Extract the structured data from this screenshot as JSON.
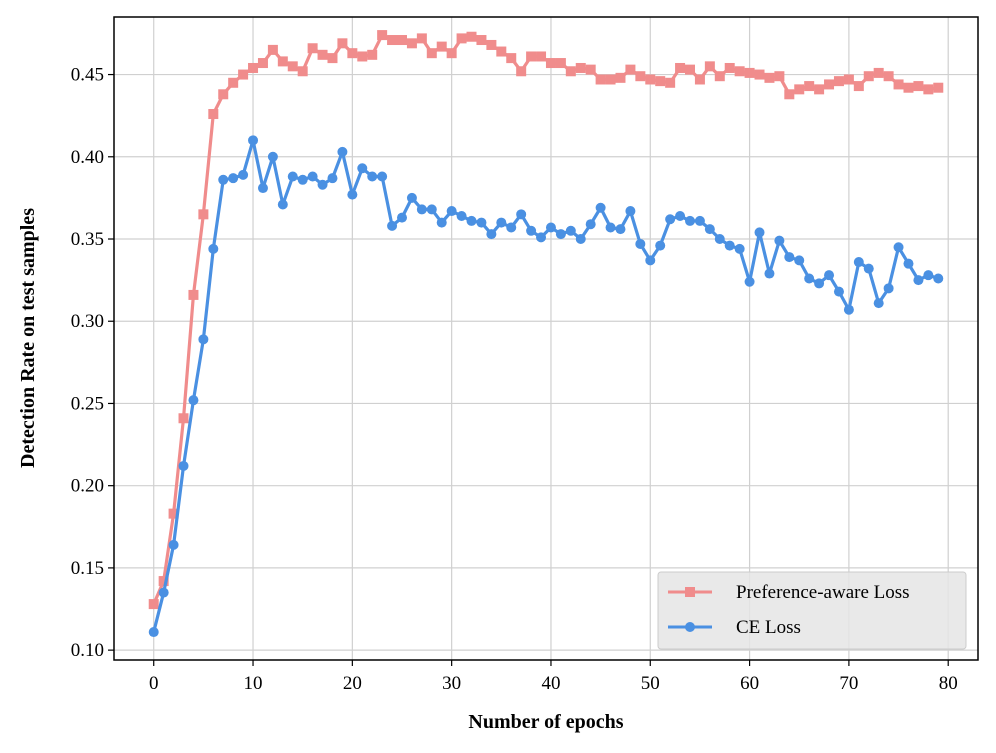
{
  "chart_data": {
    "type": "line",
    "title": "",
    "xlabel": "Number of epochs",
    "ylabel": "Detection Rate on test samples",
    "xlim": [
      -4,
      83
    ],
    "ylim": [
      0.094,
      0.485
    ],
    "xticks": [
      0,
      10,
      20,
      30,
      40,
      50,
      60,
      70,
      80
    ],
    "yticks": [
      0.1,
      0.15,
      0.2,
      0.25,
      0.3,
      0.35,
      0.4,
      0.45
    ],
    "ytick_labels": [
      "0.10",
      "0.15",
      "0.20",
      "0.25",
      "0.30",
      "0.35",
      "0.40",
      "0.45"
    ],
    "grid": true,
    "legend_position": "lower-right",
    "x": [
      0,
      1,
      2,
      3,
      4,
      5,
      6,
      7,
      8,
      9,
      10,
      11,
      12,
      13,
      14,
      15,
      16,
      17,
      18,
      19,
      20,
      21,
      22,
      23,
      24,
      25,
      26,
      27,
      28,
      29,
      30,
      31,
      32,
      33,
      34,
      35,
      36,
      37,
      38,
      39,
      40,
      41,
      42,
      43,
      44,
      45,
      46,
      47,
      48,
      49,
      50,
      51,
      52,
      53,
      54,
      55,
      56,
      57,
      58,
      59,
      60,
      61,
      62,
      63,
      64,
      65,
      66,
      67,
      68,
      69,
      70,
      71,
      72,
      73,
      74,
      75,
      76,
      77,
      78,
      79
    ],
    "series": [
      {
        "name": "Preference-aware Loss",
        "color": "#f08c8c",
        "marker": "square",
        "values": [
          0.128,
          0.142,
          0.183,
          0.241,
          0.316,
          0.365,
          0.426,
          0.438,
          0.445,
          0.45,
          0.454,
          0.457,
          0.465,
          0.458,
          0.455,
          0.452,
          0.466,
          0.462,
          0.46,
          0.469,
          0.463,
          0.461,
          0.462,
          0.474,
          0.471,
          0.471,
          0.469,
          0.472,
          0.463,
          0.467,
          0.463,
          0.472,
          0.473,
          0.471,
          0.468,
          0.464,
          0.46,
          0.452,
          0.461,
          0.461,
          0.457,
          0.457,
          0.452,
          0.454,
          0.453,
          0.447,
          0.447,
          0.448,
          0.453,
          0.449,
          0.447,
          0.446,
          0.445,
          0.454,
          0.453,
          0.447,
          0.455,
          0.449,
          0.454,
          0.452,
          0.451,
          0.45,
          0.448,
          0.449,
          0.438,
          0.441,
          0.443,
          0.441,
          0.444,
          0.446,
          0.447,
          0.443,
          0.449,
          0.451,
          0.449,
          0.444,
          0.442,
          0.443,
          0.441,
          0.442
        ]
      },
      {
        "name": "CE Loss",
        "color": "#4a90e2",
        "marker": "circle",
        "values": [
          0.111,
          0.135,
          0.164,
          0.212,
          0.252,
          0.289,
          0.344,
          0.386,
          0.387,
          0.389,
          0.41,
          0.381,
          0.4,
          0.371,
          0.388,
          0.386,
          0.388,
          0.383,
          0.387,
          0.403,
          0.377,
          0.393,
          0.388,
          0.388,
          0.358,
          0.363,
          0.375,
          0.368,
          0.368,
          0.36,
          0.367,
          0.364,
          0.361,
          0.36,
          0.353,
          0.36,
          0.357,
          0.365,
          0.355,
          0.351,
          0.357,
          0.353,
          0.355,
          0.35,
          0.359,
          0.369,
          0.357,
          0.356,
          0.367,
          0.347,
          0.337,
          0.346,
          0.362,
          0.364,
          0.361,
          0.361,
          0.356,
          0.35,
          0.346,
          0.344,
          0.324,
          0.354,
          0.329,
          0.349,
          0.339,
          0.337,
          0.326,
          0.323,
          0.328,
          0.318,
          0.307,
          0.336,
          0.332,
          0.311,
          0.32,
          0.345,
          0.335,
          0.325,
          0.328,
          0.326
        ]
      }
    ]
  }
}
